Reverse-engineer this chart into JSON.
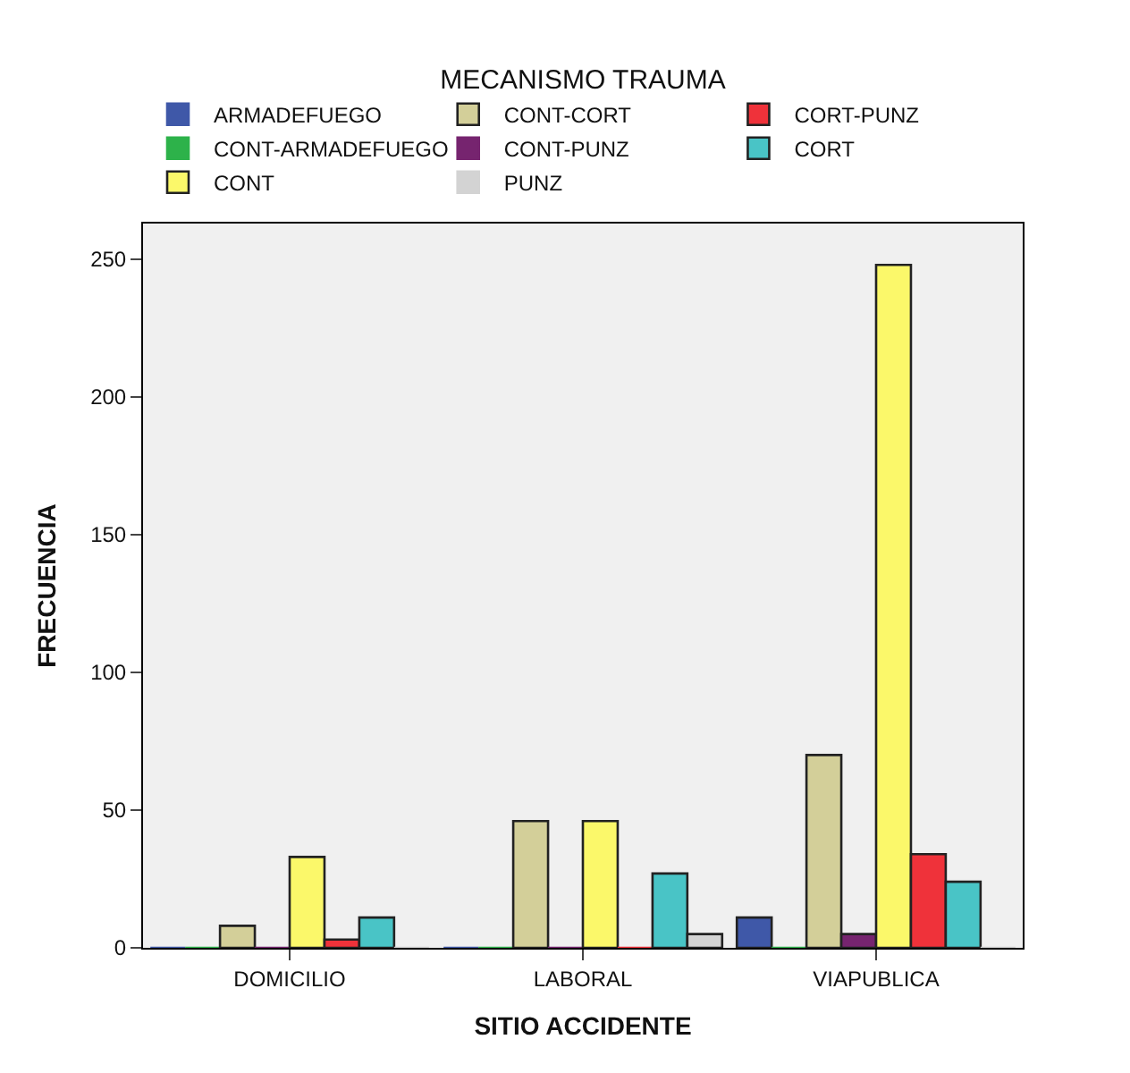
{
  "chart_data": {
    "type": "bar",
    "xlabel": "SITIO ACCIDENTE",
    "ylabel": "FRECUENCIA",
    "legend_title": "MECANISMO TRAUMA",
    "categories": [
      "DOMICILIO",
      "LABORAL",
      "VIAPUBLICA"
    ],
    "series": [
      {
        "name": "ARMADEFUEGO",
        "color": "#3f58a8",
        "values": [
          0,
          0,
          11
        ]
      },
      {
        "name": "CONT-ARMADEFUEGO",
        "color": "#2db24a",
        "values": [
          0,
          0,
          0
        ]
      },
      {
        "name": "CONT-CORT",
        "color": "#d3cf99",
        "values": [
          8,
          46,
          70
        ]
      },
      {
        "name": "CONT-PUNZ",
        "color": "#76246f",
        "values": [
          0,
          0,
          5
        ]
      },
      {
        "name": "CONT",
        "color": "#fbf86a",
        "values": [
          33,
          46,
          248
        ]
      },
      {
        "name": "CORT-PUNZ",
        "color": "#ef323a",
        "values": [
          3,
          0,
          34
        ]
      },
      {
        "name": "CORT",
        "color": "#49c4c6",
        "values": [
          11,
          27,
          24
        ]
      },
      {
        "name": "PUNZ",
        "color": "#d3d3d3",
        "values": [
          0,
          5,
          0
        ]
      }
    ],
    "ylim": [
      0,
      263
    ],
    "yticks": [
      0,
      50,
      100,
      150,
      200,
      250
    ],
    "grid": false,
    "legend": "top"
  }
}
